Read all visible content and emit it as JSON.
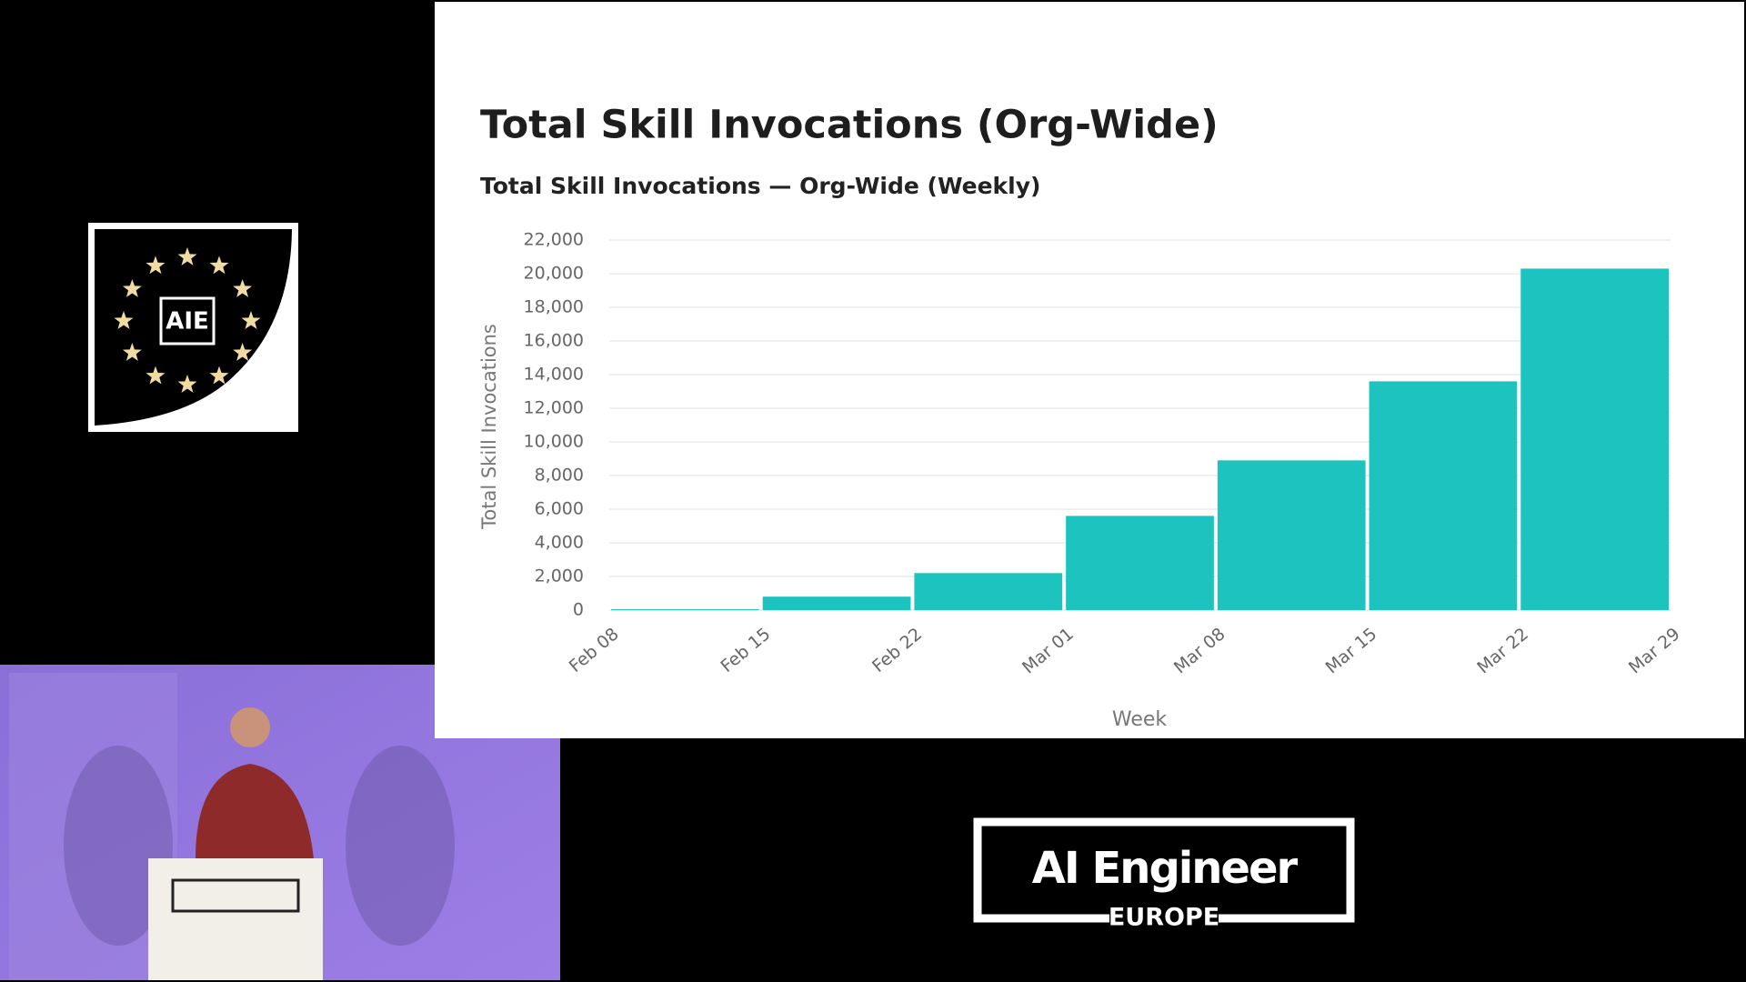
{
  "chart_data": {
    "type": "bar",
    "title": "Total Skill Invocations (Org-Wide)",
    "subtitle": "Total Skill Invocations — Org-Wide (Weekly)",
    "x_label": "Week",
    "y_label": "Total Skill Invocations",
    "x": [
      "Feb 08",
      "Feb 15",
      "Feb 22",
      "Mar 01",
      "Mar 08",
      "Mar 15",
      "Mar 22"
    ],
    "values": [
      50,
      800,
      2200,
      5600,
      8900,
      13600,
      20300
    ],
    "color": "#1cc3bf",
    "xticks": [
      "Feb 08",
      "Feb 15",
      "Feb 22",
      "Mar 01",
      "Mar 08",
      "Mar 15",
      "Mar 22",
      "Mar 29"
    ],
    "ylim": [
      0,
      22000
    ],
    "yticks": [
      0,
      {
        "value": 2000,
        "label": "2,000"
      },
      {
        "value": 4000,
        "label": "4,000"
      },
      {
        "value": 6000,
        "label": "6,000"
      },
      {
        "value": 8000,
        "label": "8,000"
      },
      {
        "value": 10000,
        "label": "10,000"
      },
      {
        "value": 12000,
        "label": "12,000"
      },
      {
        "value": 14000,
        "label": "14,000"
      },
      {
        "value": 16000,
        "label": "16,000"
      },
      {
        "value": 18000,
        "label": "18,000"
      },
      {
        "value": 20000,
        "label": "20,000"
      },
      {
        "value": 22000,
        "label": "22,000"
      }
    ],
    "grid": true
  },
  "branding": {
    "badge": "AIE",
    "logo": "AI Engineer",
    "region": "EUROPE"
  }
}
